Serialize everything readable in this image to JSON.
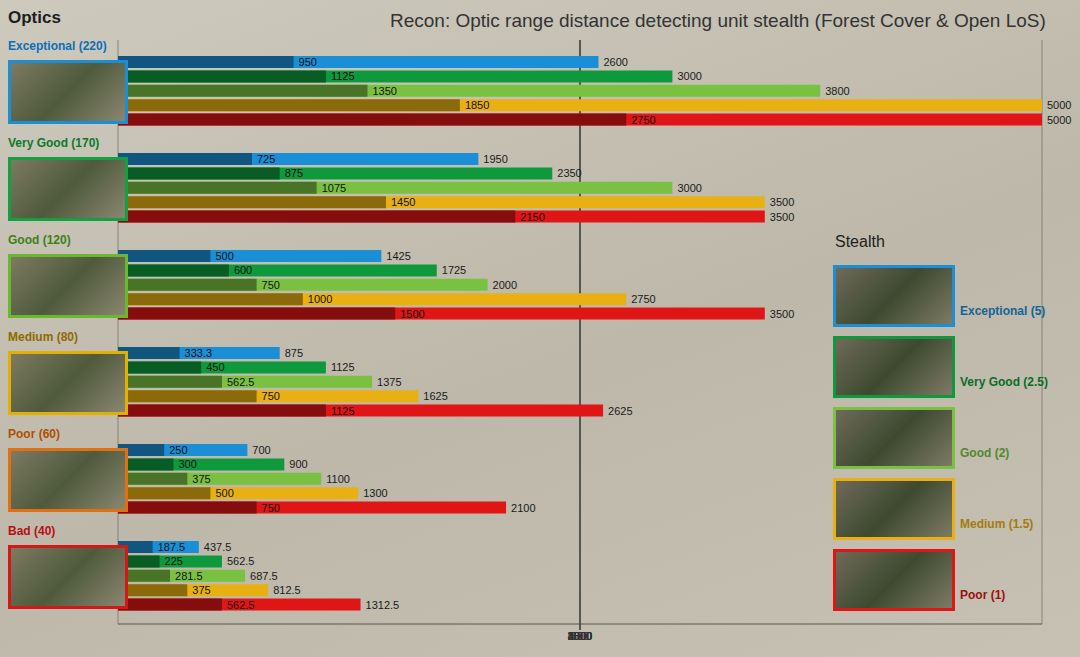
{
  "chart_data": {
    "type": "bar",
    "orientation": "horizontal",
    "title": "Recon: Optic range distance detecting unit stealth  (Forest Cover & Open LoS)",
    "y_label": "Optics",
    "legend_title": "Stealth",
    "legend": "right",
    "categories": [
      "Exceptional (220)",
      "Very Good (170)",
      "Good (120)",
      "Medium (80)",
      "Poor (60)",
      "Bad (40)"
    ],
    "series": [
      {
        "name": "Exceptional (5)",
        "color": "#1a8fd6",
        "forest_values": [
          950,
          725,
          500,
          333.3,
          250,
          187.5
        ],
        "values": [
          2600,
          1950,
          1425,
          875,
          700,
          437.5
        ]
      },
      {
        "name": "Very Good (2.5)",
        "color": "#0e9a3c",
        "forest_values": [
          1125,
          875,
          600,
          450,
          300,
          225
        ],
        "values": [
          3000,
          2350,
          1725,
          1125,
          900,
          562.5
        ]
      },
      {
        "name": "Good (2)",
        "color": "#7ac142",
        "forest_values": [
          1350,
          1075,
          750,
          562.5,
          375,
          281.5
        ],
        "values": [
          3800,
          3000,
          2000,
          1375,
          1100,
          687.5
        ]
      },
      {
        "name": "Medium (1.5)",
        "color": "#e8b012",
        "forest_values": [
          1850,
          1450,
          1000,
          750,
          500,
          375
        ],
        "values": [
          5000,
          3500,
          2750,
          1625,
          1300,
          812.5
        ]
      },
      {
        "name": "Poor (1)",
        "color": "#e01515",
        "forest_values": [
          2750,
          2150,
          1500,
          1125,
          750,
          562.5
        ],
        "values": [
          5000,
          3500,
          3500,
          2625,
          2100,
          1312.5
        ]
      }
    ],
    "xlim": [
      0,
      5000
    ],
    "xticks": [
      0,
      500,
      1000,
      1500,
      2000,
      2500,
      3000,
      3500,
      4000,
      4500,
      5000
    ],
    "grid": true,
    "data_labels": true
  }
}
